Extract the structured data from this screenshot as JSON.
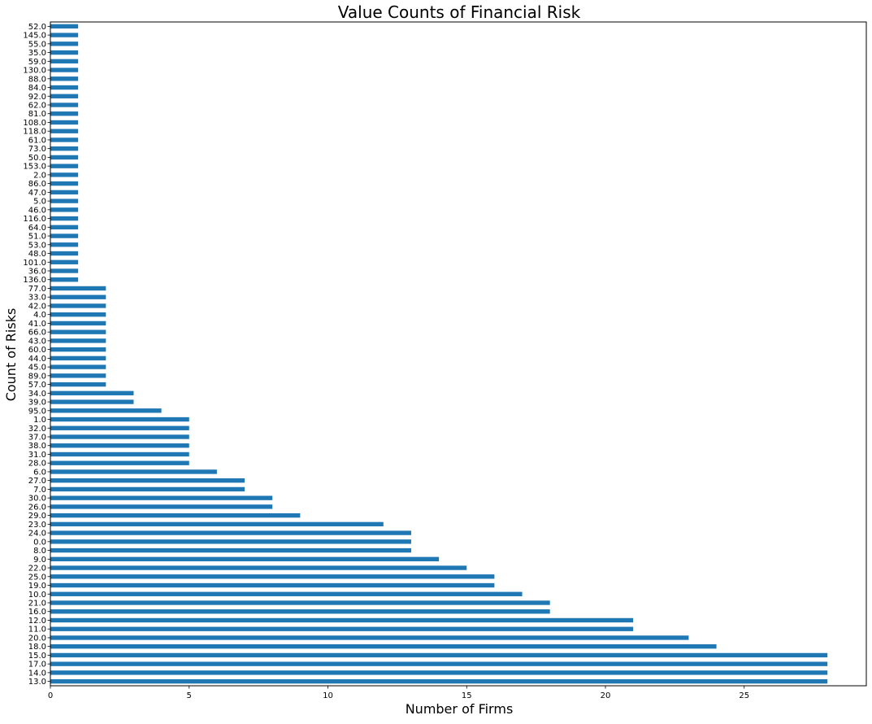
{
  "chart_data": {
    "type": "bar",
    "orientation": "horizontal",
    "title": "Value Counts of Financial Risk",
    "xlabel": "Number of Firms",
    "ylabel": "Count of Risks",
    "xlim": [
      0,
      29.4
    ],
    "xticks": [
      0,
      5,
      10,
      15,
      20,
      25
    ],
    "grid": false,
    "legend": "none",
    "bar_color": "#1f77b4",
    "categories": [
      "13.0",
      "14.0",
      "17.0",
      "15.0",
      "18.0",
      "20.0",
      "11.0",
      "12.0",
      "16.0",
      "21.0",
      "10.0",
      "19.0",
      "25.0",
      "22.0",
      "9.0",
      "8.0",
      "0.0",
      "24.0",
      "23.0",
      "29.0",
      "26.0",
      "30.0",
      "7.0",
      "27.0",
      "6.0",
      "28.0",
      "31.0",
      "38.0",
      "37.0",
      "32.0",
      "1.0",
      "95.0",
      "39.0",
      "34.0",
      "57.0",
      "89.0",
      "45.0",
      "44.0",
      "60.0",
      "43.0",
      "66.0",
      "41.0",
      "4.0",
      "42.0",
      "33.0",
      "77.0",
      "136.0",
      "36.0",
      "101.0",
      "48.0",
      "53.0",
      "51.0",
      "64.0",
      "116.0",
      "46.0",
      "5.0",
      "47.0",
      "86.0",
      "2.0",
      "153.0",
      "50.0",
      "73.0",
      "61.0",
      "118.0",
      "108.0",
      "81.0",
      "62.0",
      "92.0",
      "84.0",
      "88.0",
      "130.0",
      "59.0",
      "35.0",
      "55.0",
      "145.0",
      "52.0"
    ],
    "values": [
      28,
      28,
      28,
      28,
      24,
      23,
      21,
      21,
      18,
      18,
      17,
      16,
      16,
      15,
      14,
      13,
      13,
      13,
      12,
      9,
      8,
      8,
      7,
      7,
      6,
      5,
      5,
      5,
      5,
      5,
      5,
      4,
      3,
      3,
      2,
      2,
      2,
      2,
      2,
      2,
      2,
      2,
      2,
      2,
      2,
      2,
      1,
      1,
      1,
      1,
      1,
      1,
      1,
      1,
      1,
      1,
      1,
      1,
      1,
      1,
      1,
      1,
      1,
      1,
      1,
      1,
      1,
      1,
      1,
      1,
      1,
      1,
      1,
      1,
      1,
      1
    ]
  }
}
